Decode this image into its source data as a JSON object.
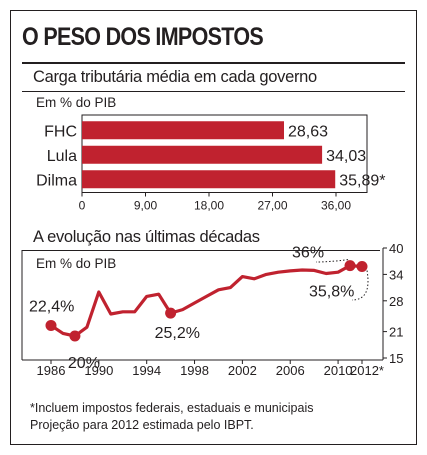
{
  "title": "O PESO DOS IMPOSTOS",
  "footnotes": [
    "*Incluem impostos federais, estaduais e municipais",
    "Projeção para 2012 estimada pelo IBPT."
  ],
  "colors": {
    "bar": "#c0222f",
    "line": "#c0222f",
    "ink": "#231f20",
    "grid": "#bdbdbd"
  },
  "chart_data": [
    {
      "type": "bar",
      "orientation": "horizontal",
      "title": "Carga tributária média em cada governo",
      "subtitle": "Em % do PIB",
      "categories": [
        "FHC",
        "Lula",
        "Dilma"
      ],
      "values": [
        28.63,
        34.03,
        35.89
      ],
      "value_labels": [
        "28,63",
        "34,03",
        "35,89*"
      ],
      "xlim": [
        0,
        36
      ],
      "xticks": [
        0,
        9,
        18,
        27,
        36
      ],
      "xtick_labels": [
        "0",
        "9,00",
        "18,00",
        "27,00",
        "36,00"
      ],
      "grid": false,
      "legend": "none"
    },
    {
      "type": "line",
      "title": "A evolução nas últimas décadas",
      "subtitle": "Em % do PIB",
      "x": [
        1986,
        1987,
        1988,
        1989,
        1990,
        1991,
        1992,
        1993,
        1994,
        1995,
        1996,
        1997,
        1998,
        1999,
        2000,
        2001,
        2002,
        2003,
        2004,
        2005,
        2006,
        2007,
        2008,
        2009,
        2010,
        2011,
        2012
      ],
      "y": [
        22.4,
        20.6,
        20.0,
        22.0,
        30.0,
        25.0,
        25.5,
        25.5,
        29.0,
        29.5,
        25.2,
        26.0,
        27.5,
        29.0,
        30.5,
        31.0,
        33.5,
        33.0,
        34.0,
        34.5,
        34.8,
        35.0,
        34.9,
        34.2,
        34.5,
        36.0,
        35.8
      ],
      "xticks": [
        1986,
        1990,
        1994,
        1998,
        2002,
        2006,
        2010,
        2012
      ],
      "xtick_labels": [
        "1986",
        "1990",
        "1994",
        "1998",
        "2002",
        "2006",
        "2010",
        "2012*"
      ],
      "ylim": [
        15,
        40
      ],
      "yticks": [
        15,
        21,
        28,
        34,
        40
      ],
      "ytick_labels": [
        "15",
        "21",
        "28",
        "34",
        "40"
      ],
      "highlight_points": [
        {
          "x": 1986,
          "y": 22.4
        },
        {
          "x": 1988,
          "y": 20.0
        },
        {
          "x": 1996,
          "y": 25.2
        },
        {
          "x": 2011,
          "y": 36.0
        },
        {
          "x": 2012,
          "y": 35.8
        }
      ],
      "annotations": [
        {
          "text": "22,4%",
          "x": 1986
        },
        {
          "text": "20%",
          "x": 1988
        },
        {
          "text": "25,2%",
          "x": 1996
        },
        {
          "text": "36%",
          "x": 2011
        },
        {
          "text": "35,8%",
          "x": 2012
        }
      ],
      "grid": false,
      "legend": "none"
    }
  ]
}
